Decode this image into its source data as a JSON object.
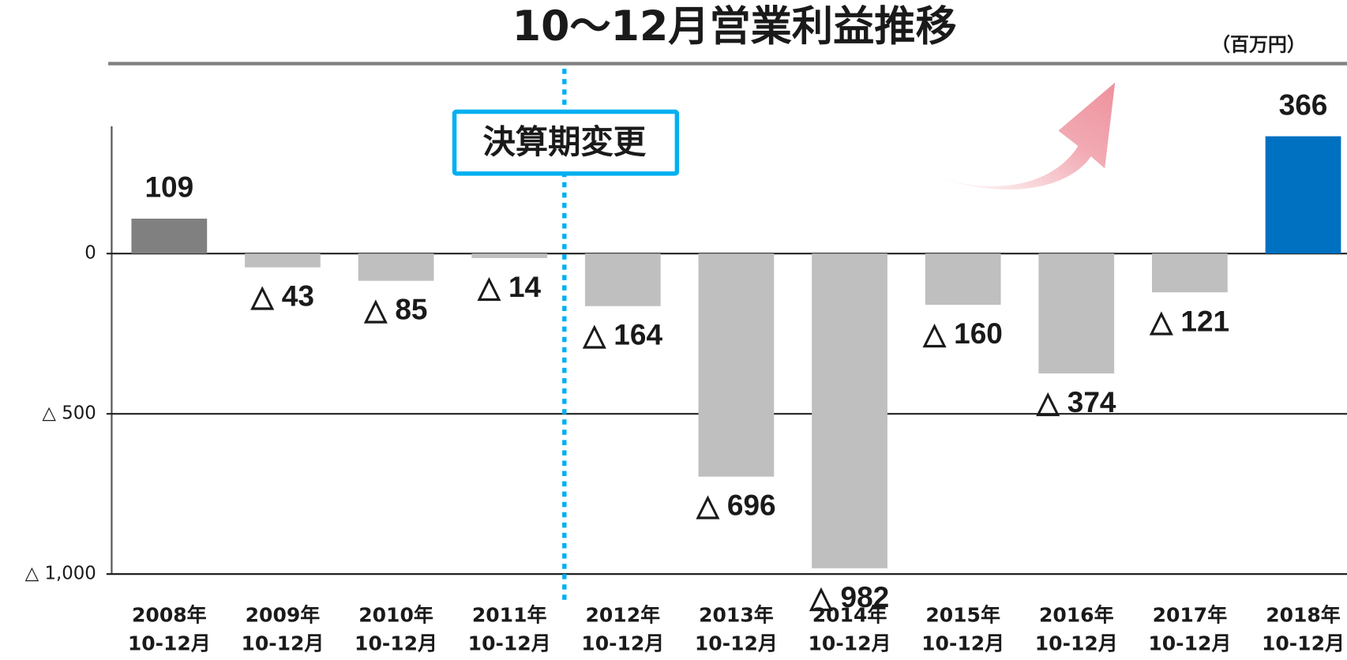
{
  "chart_data": {
    "type": "bar",
    "title": "10～12月営業利益推移",
    "unit_label": "（百万円）",
    "annotation": "決算期変更",
    "categories": [
      "2008年\n10-12月",
      "2009年\n10-12月",
      "2010年\n10-12月",
      "2011年\n10-12月",
      "2012年\n10-12月",
      "2013年\n10-12月",
      "2014年\n10-12月",
      "2015年\n10-12月",
      "2016年\n10-12月",
      "2017年\n10-12月",
      "2018年\n10-12月"
    ],
    "values": [
      109,
      -43,
      -85,
      -14,
      -164,
      -696,
      -982,
      -160,
      -374,
      -121,
      366
    ],
    "value_labels": [
      "109",
      "△ 43",
      "△ 85",
      "△ 14",
      "△ 164",
      "△ 696",
      "△ 982",
      "△ 160",
      "△ 374",
      "△ 121",
      "366"
    ],
    "colors": [
      "#808080",
      "#bfbfbf",
      "#bfbfbf",
      "#bfbfbf",
      "#bfbfbf",
      "#bfbfbf",
      "#bfbfbf",
      "#bfbfbf",
      "#bfbfbf",
      "#bfbfbf",
      "#0070c0"
    ],
    "ylim": [
      -1000,
      397
    ],
    "yticks": [
      {
        "value": -1000,
        "label": "△ 1,000"
      },
      {
        "value": -500,
        "label": "△ 500"
      },
      0
    ]
  }
}
